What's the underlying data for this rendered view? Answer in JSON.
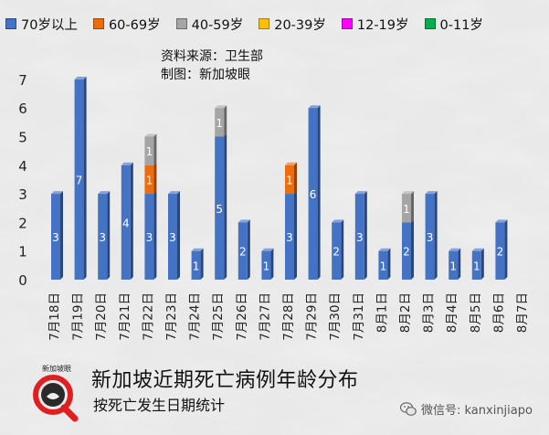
{
  "legend": [
    {
      "label": "70岁以上",
      "color": "#4472c4"
    },
    {
      "label": "60-69岁",
      "color": "#ed6c0c"
    },
    {
      "label": "40-59岁",
      "color": "#a5a5a5"
    },
    {
      "label": "20-39岁",
      "color": "#ffc000"
    },
    {
      "label": "12-19岁",
      "color": "#ff00ff"
    },
    {
      "label": "0-11岁",
      "color": "#00b050"
    }
  ],
  "source": {
    "line1": "资料来源：卫生部",
    "line2": "制图：新加坡眼"
  },
  "footer": {
    "title": "新加坡近期死亡病例年龄分布",
    "subtitle": "按死亡发生日期统计"
  },
  "logo": {
    "text": "新加坡眼"
  },
  "watermark": {
    "text": "微信号: kanxinjiapo"
  },
  "chart_data": {
    "type": "bar",
    "stacked": true,
    "categories": [
      "7月18日",
      "7月19日",
      "7月20日",
      "7月21日",
      "7月22日",
      "7月23日",
      "7月24日",
      "7月25日",
      "7月26日",
      "7月27日",
      "7月28日",
      "7月29日",
      "7月30日",
      "7月31日",
      "8月1日",
      "8月2日",
      "8月3日",
      "8月4日",
      "8月5日",
      "8月6日",
      "8月7日"
    ],
    "series": [
      {
        "name": "70岁以上",
        "color": "#4472c4",
        "values": [
          3,
          7,
          3,
          4,
          3,
          3,
          1,
          5,
          2,
          1,
          3,
          6,
          2,
          3,
          1,
          2,
          3,
          1,
          1,
          2,
          0
        ]
      },
      {
        "name": "60-69岁",
        "color": "#ed6c0c",
        "values": [
          0,
          0,
          0,
          0,
          1,
          0,
          0,
          0,
          0,
          0,
          1,
          0,
          0,
          0,
          0,
          0,
          0,
          0,
          0,
          0,
          0
        ]
      },
      {
        "name": "40-59岁",
        "color": "#a5a5a5",
        "values": [
          0,
          0,
          0,
          0,
          1,
          0,
          0,
          1,
          0,
          0,
          0,
          0,
          0,
          0,
          0,
          1,
          0,
          0,
          0,
          0,
          0
        ]
      },
      {
        "name": "20-39岁",
        "color": "#ffc000",
        "values": [
          0,
          0,
          0,
          0,
          0,
          0,
          0,
          0,
          0,
          0,
          0,
          0,
          0,
          0,
          0,
          0,
          0,
          0,
          0,
          0,
          0
        ]
      },
      {
        "name": "12-19岁",
        "color": "#ff00ff",
        "values": [
          0,
          0,
          0,
          0,
          0,
          0,
          0,
          0,
          0,
          0,
          0,
          0,
          0,
          0,
          0,
          0,
          0,
          0,
          0,
          0,
          0
        ]
      },
      {
        "name": "0-11岁",
        "color": "#00b050",
        "values": [
          0,
          0,
          0,
          0,
          0,
          0,
          0,
          0,
          0,
          0,
          0,
          0,
          0,
          0,
          0,
          0,
          0,
          0,
          0,
          0,
          0
        ]
      }
    ],
    "y_ticks": [
      "0",
      "1",
      "2",
      "3",
      "4",
      "5",
      "6",
      "7"
    ],
    "ylim": [
      0,
      7.6
    ],
    "grid": false
  }
}
